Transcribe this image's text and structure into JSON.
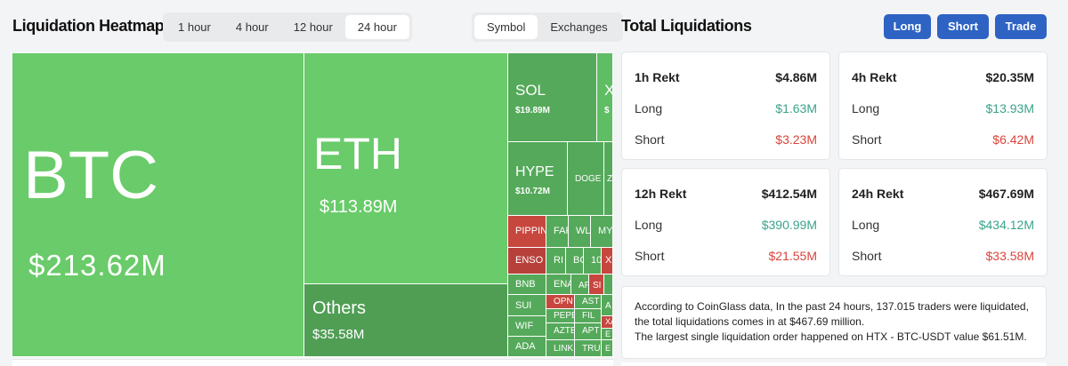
{
  "heatmap": {
    "title": "Liquidation Heatmap",
    "tabs": [
      "1 hour",
      "4 hour",
      "12 hour",
      "24 hour"
    ],
    "active_tab": "24 hour",
    "toggle": [
      "Symbol",
      "Exchanges"
    ],
    "cells": {
      "btc": {
        "symbol": "BTC",
        "value": "$213.62M"
      },
      "eth": {
        "symbol": "ETH",
        "value": "$113.89M"
      },
      "others": {
        "symbol": "Others",
        "value": "$35.58M"
      },
      "sol": {
        "symbol": "SOL",
        "value": "$19.89M"
      },
      "xrp": {
        "symbol": "X",
        "value": "$"
      },
      "hype": {
        "symbol": "HYPE",
        "value": "$10.72M"
      },
      "doge": {
        "symbol": "DOGE"
      },
      "z": {
        "symbol": "Z"
      },
      "pippin": {
        "symbol": "PIPPIN"
      },
      "far": {
        "symbol": "FAR"
      },
      "wl": {
        "symbol": "WL"
      },
      "my": {
        "symbol": "MY"
      },
      "enso": {
        "symbol": "ENSO"
      },
      "ri": {
        "symbol": "RI"
      },
      "bc": {
        "symbol": "BC"
      },
      "ten": {
        "symbol": "10"
      },
      "x2": {
        "symbol": "X"
      },
      "bnb": {
        "symbol": "BNB"
      },
      "ena": {
        "symbol": "ENA"
      },
      "ap": {
        "symbol": "AP"
      },
      "si": {
        "symbol": "SI"
      },
      "sui": {
        "symbol": "SUI"
      },
      "opn": {
        "symbol": "OPN"
      },
      "ast": {
        "symbol": "AST"
      },
      "a1": {
        "symbol": "A"
      },
      "wif": {
        "symbol": "WIF"
      },
      "pepe": {
        "symbol": "PEPE"
      },
      "fil": {
        "symbol": "FIL"
      },
      "xa": {
        "symbol": "XA"
      },
      "ada": {
        "symbol": "ADA"
      },
      "azte": {
        "symbol": "AZTE"
      },
      "apt": {
        "symbol": "APT"
      },
      "e1": {
        "symbol": "E"
      },
      "link": {
        "symbol": "LINK"
      },
      "tru": {
        "symbol": "TRU"
      },
      "e2": {
        "symbol": "E"
      }
    }
  },
  "total": {
    "title": "Total Liquidations",
    "buttons": {
      "long": "Long",
      "short": "Short",
      "trade": "Trade"
    },
    "cards": [
      {
        "title": "1h Rekt",
        "total": "$4.86M",
        "long_label": "Long",
        "long": "$1.63M",
        "short_label": "Short",
        "short": "$3.23M"
      },
      {
        "title": "4h Rekt",
        "total": "$20.35M",
        "long_label": "Long",
        "long": "$13.93M",
        "short_label": "Short",
        "short": "$6.42M"
      },
      {
        "title": "12h Rekt",
        "total": "$412.54M",
        "long_label": "Long",
        "long": "$390.99M",
        "short_label": "Short",
        "short": "$21.55M"
      },
      {
        "title": "24h Rekt",
        "total": "$467.69M",
        "long_label": "Long",
        "long": "$434.12M",
        "short_label": "Short",
        "short": "$33.58M"
      }
    ],
    "note_line1": "According to CoinGlass data, In the past 24 hours, 137.015 traders were liquidated, the total liquidations comes in at $467.69 million.",
    "note_line2": "The largest single liquidation order happened on HTX - BTC-USDT value $61.51M."
  },
  "colors": {
    "accent": "#2e63c3",
    "long_green": "#3aa38a",
    "short_red": "#d9453c",
    "tile_green": "#69cb69",
    "tile_red": "#c7473f"
  }
}
